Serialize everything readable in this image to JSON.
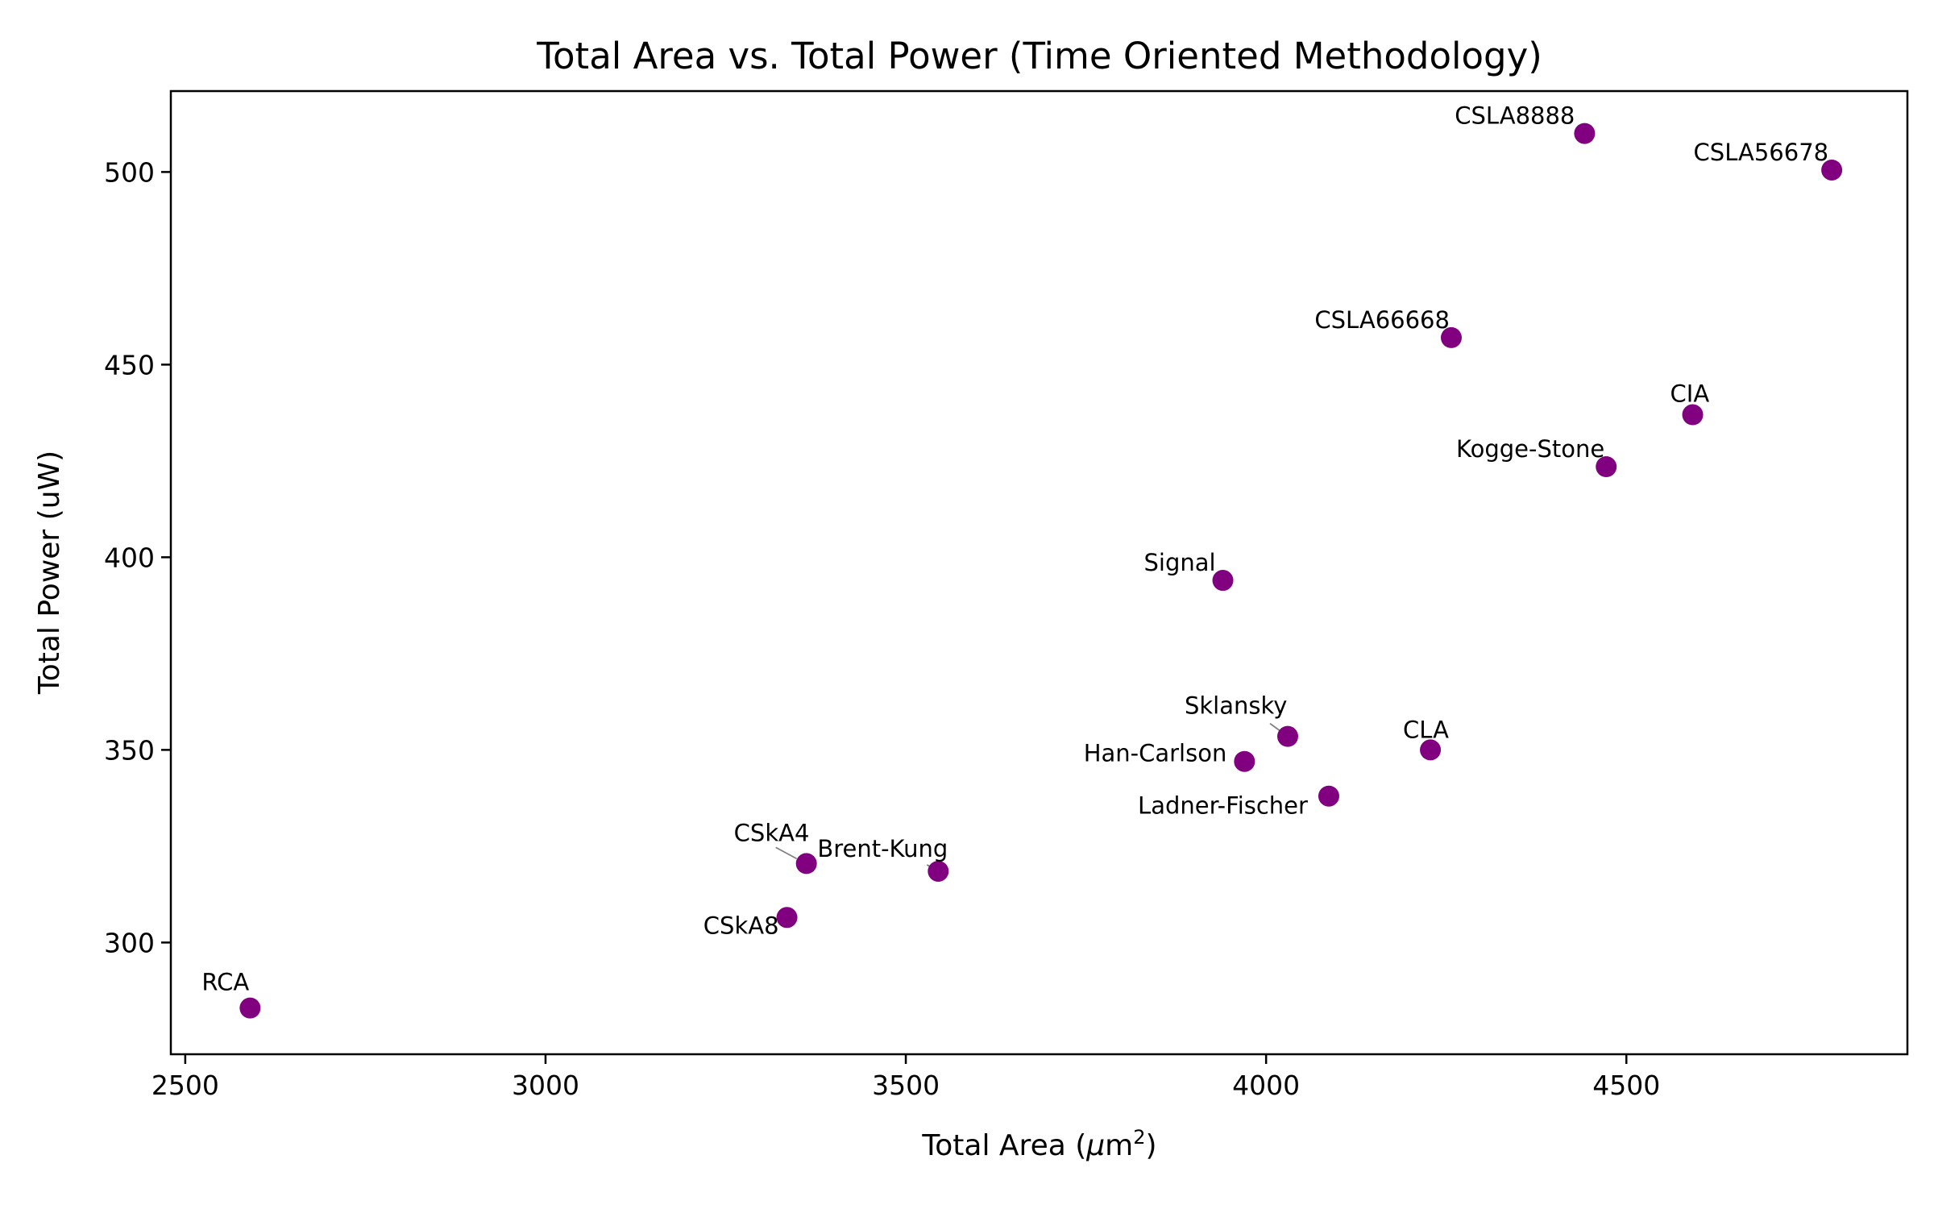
{
  "chart_data": {
    "type": "scatter",
    "title": "Total Area vs. Total Power (Time Oriented Methodology)",
    "xlabel_text": "Total Area (",
    "xlabel_mu": "μ",
    "xlabel_unit": "m",
    "xlabel_sup": "2",
    "xlabel_close": ")",
    "ylabel": "Total Power (uW)",
    "xlim": [
      2480,
      4890
    ],
    "ylim": [
      271,
      521
    ],
    "xticks": [
      2500,
      3000,
      3500,
      4000,
      4500
    ],
    "yticks": [
      300,
      350,
      400,
      450,
      500
    ],
    "marker_color": "#800080",
    "grid": false,
    "points": [
      {
        "name": "RCA",
        "x": 2590,
        "y": 283
      },
      {
        "name": "CSkA8",
        "x": 3335,
        "y": 306.5
      },
      {
        "name": "CSkA4",
        "x": 3362,
        "y": 320.5
      },
      {
        "name": "Brent-Kung",
        "x": 3545,
        "y": 318.5
      },
      {
        "name": "Signal",
        "x": 3940,
        "y": 394
      },
      {
        "name": "Han-Carlson",
        "x": 3970,
        "y": 347
      },
      {
        "name": "Sklansky",
        "x": 4030,
        "y": 353.5
      },
      {
        "name": "Ladner-Fischer",
        "x": 4087,
        "y": 338
      },
      {
        "name": "CLA",
        "x": 4228,
        "y": 350
      },
      {
        "name": "CSLA66668",
        "x": 4257,
        "y": 457
      },
      {
        "name": "CSLA8888",
        "x": 4442,
        "y": 510
      },
      {
        "name": "Kogge-Stone",
        "x": 4472,
        "y": 423.5
      },
      {
        "name": "CIA",
        "x": 4592,
        "y": 437
      },
      {
        "name": "CSLA56678",
        "x": 4785,
        "y": 500.5
      }
    ]
  }
}
